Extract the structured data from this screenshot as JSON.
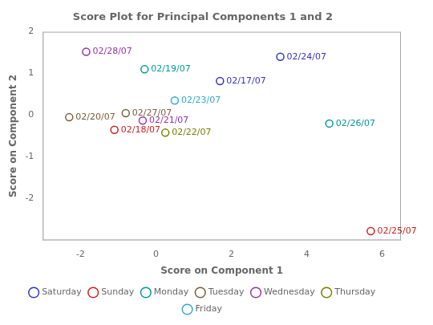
{
  "chart_data": {
    "type": "scatter",
    "title": "Score Plot for Principal Components 1 and 2",
    "xlabel": "Score on Component 1",
    "ylabel": "Score on Component 2",
    "xlim": [
      -3,
      6.5
    ],
    "ylim": [
      -3,
      2
    ],
    "xticks": [
      -2,
      0,
      2,
      4,
      6
    ],
    "yticks": [
      -2,
      -1,
      0,
      1,
      2
    ],
    "grid": false,
    "legend": "bottom",
    "series": [
      {
        "name": "Saturday",
        "color": "#3333CC",
        "x": [
          1.7,
          3.3
        ],
        "y": [
          0.82,
          1.4
        ],
        "labels": [
          "02/17/07",
          "02/24/07"
        ]
      },
      {
        "name": "Sunday",
        "color": "#CC2222",
        "x": [
          -1.1,
          5.7
        ],
        "y": [
          -0.35,
          -2.78
        ],
        "labels": [
          "02/18/07",
          "02/25/07"
        ]
      },
      {
        "name": "Monday",
        "color": "#009999",
        "x": [
          -0.3,
          4.6
        ],
        "y": [
          1.1,
          -0.2
        ],
        "labels": [
          "02/19/07",
          "02/26/07"
        ]
      },
      {
        "name": "Tuesday",
        "color": "#7B5C3A",
        "x": [
          -2.3,
          -0.8
        ],
        "y": [
          -0.05,
          0.05
        ],
        "labels": [
          "02/20/07",
          "02/27/07"
        ]
      },
      {
        "name": "Wednesday",
        "color": "#9933AA",
        "x": [
          -0.35,
          -1.85
        ],
        "y": [
          -0.13,
          1.52
        ],
        "labels": [
          "02/21/07",
          "02/28/07"
        ]
      },
      {
        "name": "Thursday",
        "color": "#7B7B00",
        "x": [
          0.25
        ],
        "y": [
          -0.42
        ],
        "labels": [
          "02/22/07"
        ]
      },
      {
        "name": "Friday",
        "color": "#33AACC",
        "x": [
          0.5
        ],
        "y": [
          0.35
        ],
        "labels": [
          "02/23/07"
        ]
      }
    ]
  }
}
